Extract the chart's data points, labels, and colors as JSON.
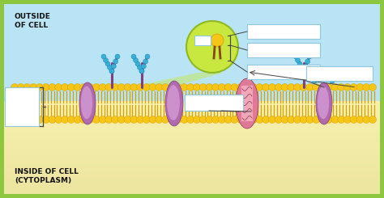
{
  "bg_outer": "#8dc63f",
  "bg_top": "#b8e4f5",
  "bg_bottom": "#f5f0b0",
  "title_outside": "OUTSIDE\nOF CELL",
  "title_inside": "INSIDE OF CELL\n(CYTOPLASM)",
  "title_fontsize": 6.5,
  "head_color": "#f5c518",
  "head_edge": "#d4a000",
  "tail_color": "#d4a000",
  "protein_purple": "#b06ab0",
  "protein_light": "#cc90cc",
  "protein_edge": "#804080",
  "channel_color": "#e07898",
  "channel_light": "#f0a8b8",
  "bead_color": "#3ab0d8",
  "bead_edge": "#1880a8",
  "zoom_fill": "#c8e840",
  "zoom_edge": "#90b820",
  "box_fill": "#ffffff",
  "box_edge": "#90c8e0",
  "line_color": "#444444",
  "bracket_color": "#444444",
  "phospho_head": "#f5c518",
  "phospho_tail": "#8B4513"
}
